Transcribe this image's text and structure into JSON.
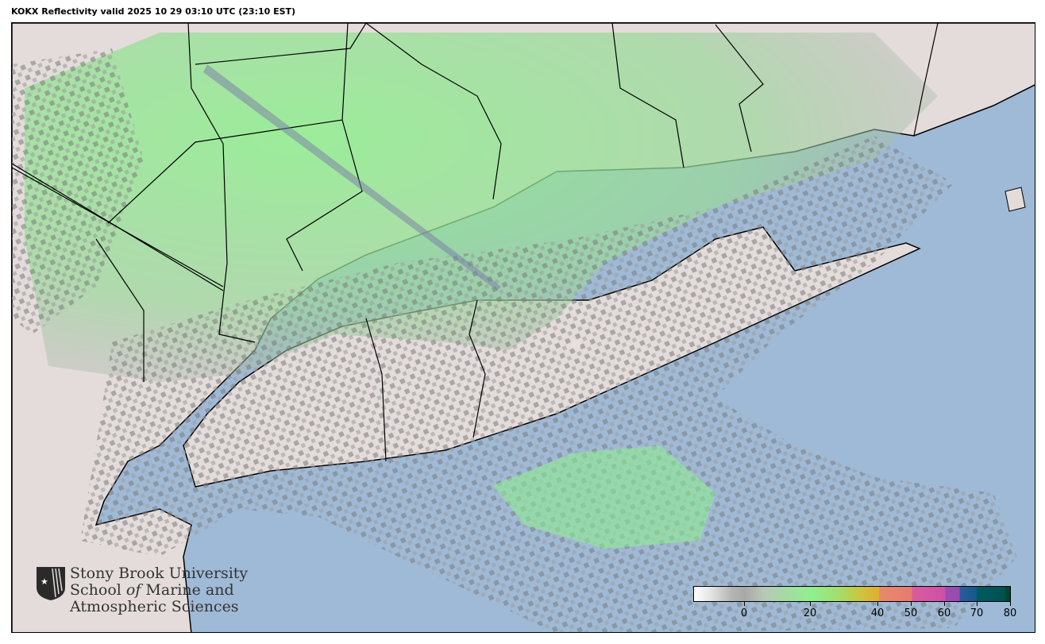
{
  "title": "KOKX Reflectivity valid 2025 10 29 03:10 UTC (23:10 EST)",
  "logo": {
    "line1": "Stony Brook University",
    "line2_a": "School ",
    "line2_b": "of",
    "line2_c": " Marine and",
    "line3": "Atmospheric Sciences"
  },
  "colorbar": {
    "ticks": [
      "0",
      "20",
      "40",
      "50",
      "60",
      "70",
      "80"
    ],
    "colors": {
      "low": "#ffffff",
      "mid": "#8ef08e",
      "40": "#e0b030",
      "50": "#dc5a9c",
      "60": "#9a4cb0",
      "65": "#2e5aa0",
      "70": "#005a60",
      "80": "#004530"
    }
  },
  "colors": {
    "ocean": "#9fbad6",
    "land": "#e4dcdb",
    "echo_green": "#8ef08e",
    "echo_gray": "#8a8a8a"
  }
}
